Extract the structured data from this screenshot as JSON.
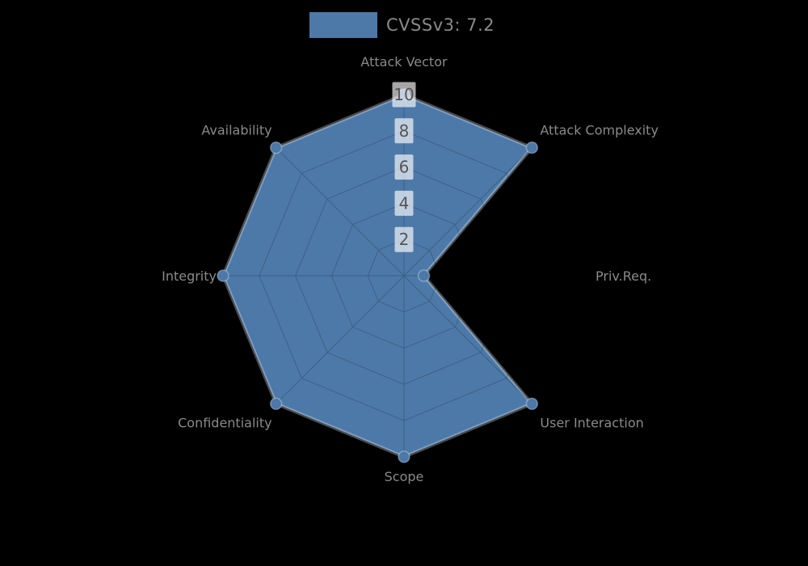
{
  "legend": {
    "label": "CVSSv3: 7.2",
    "swatch_color": "#4d79a8"
  },
  "chart_data": {
    "type": "radar",
    "title": "CVSSv3: 7.2",
    "categories": [
      "Attack Vector",
      "Attack Complexity",
      "Priv.Req.",
      "User Interaction",
      "Scope",
      "Confidentiality",
      "Integrity",
      "Availability"
    ],
    "series": [
      {
        "name": "CVSSv3: 7.2",
        "values": [
          10,
          10,
          1.1,
          10,
          10,
          10,
          10,
          10
        ]
      }
    ],
    "ticks": [
      2,
      4,
      6,
      8,
      10
    ],
    "rmax": 10,
    "grid": true,
    "legend_position": "top",
    "colors": {
      "background": "#000000",
      "fill": "#4d79a8",
      "series_stroke": "rgba(255,255,255,0.30)",
      "grid": "rgba(0,0,0,0.20)",
      "axis_label": "#8a8a8a",
      "tick_text": "#555555",
      "tick_backdrop": "rgba(255,255,255,0.65)"
    }
  }
}
